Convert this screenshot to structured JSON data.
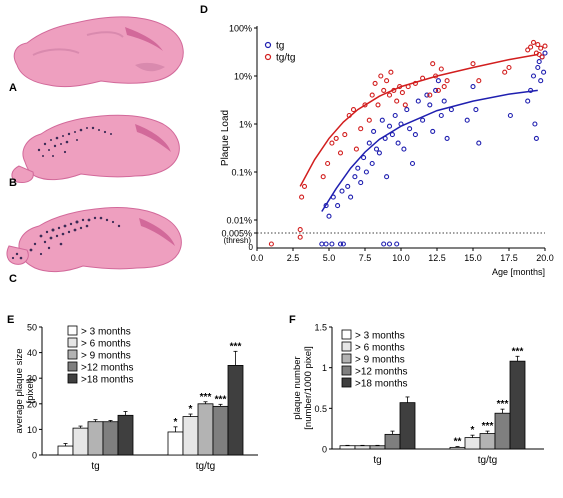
{
  "panels": {
    "A": {
      "label": "A"
    },
    "B": {
      "label": "B"
    },
    "C": {
      "label": "C"
    },
    "D": {
      "label": "D"
    },
    "E": {
      "label": "E"
    },
    "F": {
      "label": "F"
    }
  },
  "colors": {
    "tissue": "#ee9fbf",
    "tissue_dark": "#d2699a",
    "plaque": "#3a2a55",
    "tg": "#1f1fb0",
    "tgtg": "#d21e1e",
    "bars": [
      "#ffffff",
      "#e6e6e6",
      "#b3b3b3",
      "#7f7f7f",
      "#3f3f3f"
    ]
  },
  "chart_data": [
    {
      "id": "D",
      "type": "scatter",
      "xlabel": "Age [months]",
      "ylabel": "Plaque Load",
      "xlim": [
        0,
        20
      ],
      "xticks": [
        "0.0",
        "2.5",
        "5.0",
        "7.5",
        "10.0",
        "12.5",
        "15.0",
        "17.5",
        "20.0"
      ],
      "yscale": "log",
      "yticks": [
        "0.005%",
        "0.01%",
        "0.1%",
        "1%",
        "10%",
        "100%"
      ],
      "thresh_label": "(thresh)",
      "zero_label": "0",
      "legend": [
        {
          "name": "tg"
        },
        {
          "name": "tg/tg"
        }
      ],
      "legend_position": "top-left",
      "series": [
        {
          "name": "tg",
          "points": [
            [
              4.5,
              0
            ],
            [
              4.8,
              0
            ],
            [
              5.2,
              0
            ],
            [
              5.8,
              0
            ],
            [
              6.0,
              0
            ],
            [
              8.8,
              0
            ],
            [
              9.2,
              0
            ],
            [
              9.7,
              0
            ],
            [
              4.8,
              0.02
            ],
            [
              5.0,
              0.012
            ],
            [
              5.3,
              0.03
            ],
            [
              5.6,
              0.02
            ],
            [
              5.9,
              0.04
            ],
            [
              6.3,
              0.05
            ],
            [
              6.5,
              0.03
            ],
            [
              6.8,
              0.08
            ],
            [
              7.0,
              0.12
            ],
            [
              7.2,
              0.06
            ],
            [
              7.4,
              0.2
            ],
            [
              7.6,
              0.1
            ],
            [
              7.8,
              0.4
            ],
            [
              8.0,
              0.15
            ],
            [
              8.1,
              0.7
            ],
            [
              8.3,
              0.3
            ],
            [
              8.5,
              0.25
            ],
            [
              8.7,
              1.2
            ],
            [
              8.9,
              0.5
            ],
            [
              9.0,
              0.08
            ],
            [
              9.2,
              0.9
            ],
            [
              9.4,
              0.6
            ],
            [
              9.6,
              1.5
            ],
            [
              9.8,
              0.4
            ],
            [
              10.0,
              1.0
            ],
            [
              10.2,
              0.3
            ],
            [
              10.4,
              2.0
            ],
            [
              10.6,
              0.8
            ],
            [
              10.8,
              0.15
            ],
            [
              11.0,
              0.6
            ],
            [
              11.2,
              3.0
            ],
            [
              11.5,
              1.2
            ],
            [
              11.8,
              4.0
            ],
            [
              12.0,
              2.5
            ],
            [
              12.2,
              0.7
            ],
            [
              12.4,
              5.0
            ],
            [
              12.6,
              8.0
            ],
            [
              12.8,
              1.5
            ],
            [
              13.0,
              3.0
            ],
            [
              13.2,
              0.5
            ],
            [
              13.5,
              2.0
            ],
            [
              14.6,
              1.2
            ],
            [
              15.0,
              6.0
            ],
            [
              15.2,
              2.0
            ],
            [
              15.4,
              0.4
            ],
            [
              17.6,
              1.5
            ],
            [
              18.8,
              3.0
            ],
            [
              19.0,
              5.0
            ],
            [
              19.2,
              10.0
            ],
            [
              19.3,
              1.0
            ],
            [
              19.5,
              15.0
            ],
            [
              19.6,
              20.0
            ],
            [
              19.7,
              8.0
            ],
            [
              19.8,
              25.0
            ],
            [
              19.9,
              12.0
            ],
            [
              20.0,
              30.0
            ],
            [
              19.4,
              0.5
            ]
          ],
          "fit": [
            [
              4.5,
              0.015
            ],
            [
              5.5,
              0.045
            ],
            [
              6.5,
              0.12
            ],
            [
              7.5,
              0.26
            ],
            [
              8.5,
              0.48
            ],
            [
              10,
              0.9
            ],
            [
              12.5,
              1.9
            ],
            [
              15,
              3.0
            ],
            [
              17.5,
              4.2
            ],
            [
              19.5,
              5.0
            ]
          ]
        },
        {
          "name": "tg/tg",
          "points": [
            [
              1.0,
              0
            ],
            [
              3.0,
              0.004
            ],
            [
              3.1,
              0.03
            ],
            [
              3.3,
              0.05
            ],
            [
              3.0,
              0.006
            ],
            [
              4.6,
              0.08
            ],
            [
              4.9,
              0.15
            ],
            [
              5.2,
              0.4
            ],
            [
              5.5,
              0.5
            ],
            [
              5.8,
              0.25
            ],
            [
              6.1,
              0.6
            ],
            [
              6.4,
              1.5
            ],
            [
              6.7,
              2.0
            ],
            [
              6.9,
              0.3
            ],
            [
              7.2,
              0.8
            ],
            [
              7.5,
              2.5
            ],
            [
              7.8,
              1.2
            ],
            [
              8.0,
              4.0
            ],
            [
              8.2,
              7.0
            ],
            [
              8.4,
              2.5
            ],
            [
              8.6,
              10.0
            ],
            [
              8.8,
              5.0
            ],
            [
              9.0,
              8.0
            ],
            [
              9.2,
              4.0
            ],
            [
              9.3,
              12.0
            ],
            [
              9.5,
              5.0
            ],
            [
              9.7,
              3.0
            ],
            [
              9.9,
              6.0
            ],
            [
              10.1,
              4.5
            ],
            [
              10.3,
              2.5
            ],
            [
              10.5,
              6.0
            ],
            [
              11.0,
              7.0
            ],
            [
              11.5,
              9.0
            ],
            [
              12.0,
              4.0
            ],
            [
              12.2,
              18.0
            ],
            [
              12.4,
              10.0
            ],
            [
              12.6,
              5.0
            ],
            [
              12.8,
              14.0
            ],
            [
              13.0,
              6.0
            ],
            [
              13.2,
              8.0
            ],
            [
              15.0,
              18.0
            ],
            [
              15.4,
              8.0
            ],
            [
              17.2,
              12.0
            ],
            [
              17.5,
              15.0
            ],
            [
              18.8,
              35.0
            ],
            [
              19.0,
              40.0
            ],
            [
              19.2,
              50.0
            ],
            [
              19.4,
              30.0
            ],
            [
              19.5,
              45.0
            ],
            [
              19.7,
              38.0
            ],
            [
              19.8,
              25.0
            ],
            [
              20.0,
              42.0
            ],
            [
              19.6,
              28.0
            ]
          ],
          "fit": [
            [
              3.0,
              0.05
            ],
            [
              4.0,
              0.18
            ],
            [
              5.0,
              0.5
            ],
            [
              6.0,
              1.1
            ],
            [
              7.0,
              2.0
            ],
            [
              8.5,
              3.8
            ],
            [
              10,
              6.0
            ],
            [
              12.5,
              10
            ],
            [
              15,
              15
            ],
            [
              17.5,
              22
            ],
            [
              19.5,
              28
            ]
          ]
        }
      ]
    },
    {
      "id": "E",
      "type": "bar",
      "ylabel": "average plaque size [pixel]",
      "ylim": [
        0,
        50
      ],
      "yticks": [
        "0",
        "10",
        "20",
        "30",
        "40",
        "50"
      ],
      "groups": [
        "tg",
        "tg/tg"
      ],
      "legend": [
        "> 3 months",
        "> 6 months",
        "> 9 months",
        ">12 months",
        ">18 months"
      ],
      "legend_position": "top-left",
      "series": [
        {
          "name": "> 3 months",
          "values": [
            3.5,
            9.0
          ],
          "errors": [
            1.0,
            2.0
          ]
        },
        {
          "name": "> 6 months",
          "values": [
            10.5,
            15.0
          ],
          "errors": [
            0.8,
            1.0
          ]
        },
        {
          "name": "> 9 months",
          "values": [
            13.0,
            20.0
          ],
          "errors": [
            0.8,
            0.8
          ]
        },
        {
          "name": ">12 months",
          "values": [
            13.0,
            19.0
          ],
          "errors": [
            0.5,
            0.8
          ]
        },
        {
          "name": ">18 months",
          "values": [
            15.5,
            35.0
          ],
          "errors": [
            1.5,
            5.5
          ]
        }
      ],
      "significance": [
        {
          "group": 1,
          "series": 0,
          "text": "*"
        },
        {
          "group": 1,
          "series": 1,
          "text": "*"
        },
        {
          "group": 1,
          "series": 2,
          "text": "***"
        },
        {
          "group": 1,
          "series": 3,
          "text": "***"
        },
        {
          "group": 1,
          "series": 4,
          "text": "***"
        }
      ]
    },
    {
      "id": "F",
      "type": "bar",
      "ylabel": "plaque number [number/1000 pixel]",
      "ylim": [
        0,
        1.5
      ],
      "yticks": [
        "0",
        "0.5",
        "1",
        "1.5"
      ],
      "groups": [
        "tg",
        "tg/tg"
      ],
      "legend": [
        "> 3 months",
        "> 6 months",
        "> 9 months",
        ">12 months",
        ">18 months"
      ],
      "legend_position": "top-left",
      "series": [
        {
          "name": "> 3 months",
          "values": [
            0.04,
            0.02
          ],
          "errors": [
            0.005,
            0.01
          ]
        },
        {
          "name": "> 6 months",
          "values": [
            0.04,
            0.14
          ],
          "errors": [
            0.005,
            0.03
          ]
        },
        {
          "name": "> 9 months",
          "values": [
            0.04,
            0.19
          ],
          "errors": [
            0.005,
            0.03
          ]
        },
        {
          "name": ">12 months",
          "values": [
            0.18,
            0.44
          ],
          "errors": [
            0.04,
            0.05
          ]
        },
        {
          "name": ">18 months",
          "values": [
            0.57,
            1.08
          ],
          "errors": [
            0.07,
            0.06
          ]
        }
      ],
      "significance": [
        {
          "group": 1,
          "series": 0,
          "text": "**"
        },
        {
          "group": 1,
          "series": 1,
          "text": "*"
        },
        {
          "group": 1,
          "series": 2,
          "text": "***"
        },
        {
          "group": 1,
          "series": 3,
          "text": "***"
        },
        {
          "group": 1,
          "series": 4,
          "text": "***"
        }
      ]
    }
  ]
}
